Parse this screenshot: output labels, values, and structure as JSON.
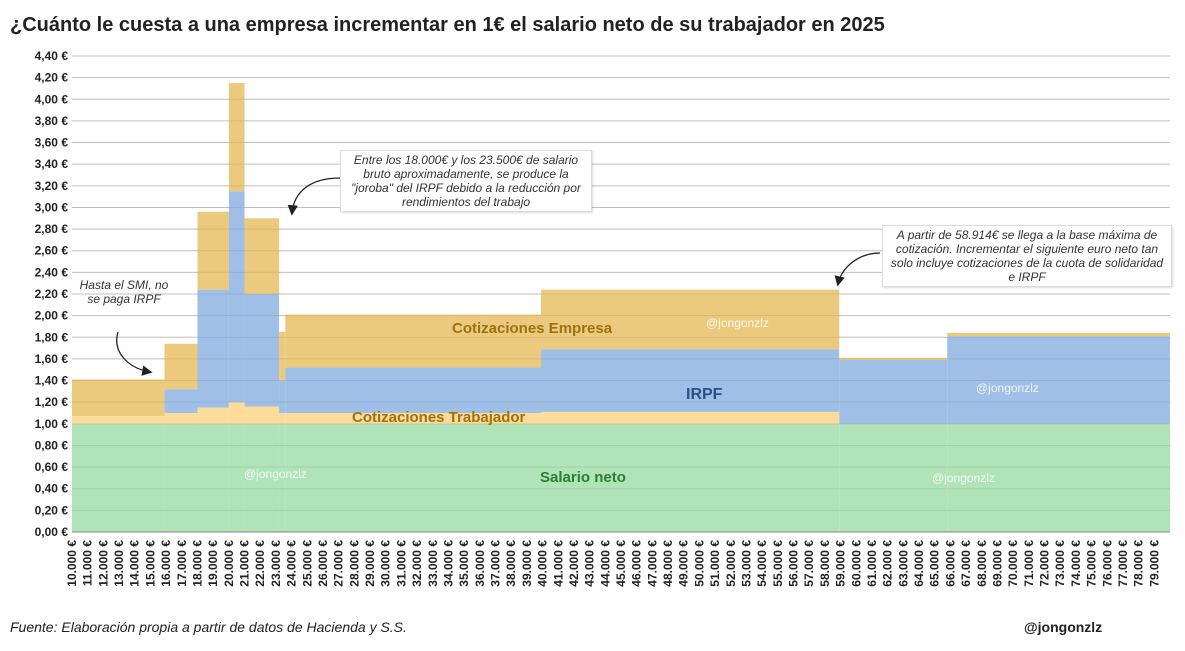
{
  "chart_data": {
    "type": "area",
    "title": "¿Cuánto le cuesta a una empresa incrementar en 1€ el salario neto de su trabajador en 2025",
    "xlabel": "",
    "ylabel": "",
    "ylim": [
      0,
      4.4
    ],
    "yticks": [
      "0,00 €",
      "0,20 €",
      "0,40 €",
      "0,60 €",
      "0,80 €",
      "1,00 €",
      "1,20 €",
      "1,40 €",
      "1,60 €",
      "1,80 €",
      "2,00 €",
      "2,20 €",
      "2,40 €",
      "2,60 €",
      "2,80 €",
      "3,00 €",
      "3,20 €",
      "3,40 €",
      "3,60 €",
      "3,80 €",
      "4,00 €",
      "4,20 €",
      "4,40 €"
    ],
    "x_tick_labels": [
      "10.000 €",
      "11.000 €",
      "12.000 €",
      "13.000 €",
      "14.000 €",
      "15.000 €",
      "16.000 €",
      "17.000 €",
      "18.000 €",
      "19.000 €",
      "20.000 €",
      "21.000 €",
      "22.000 €",
      "23.000 €",
      "24.000 €",
      "25.000 €",
      "26.000 €",
      "27.000 €",
      "28.000 €",
      "29.000 €",
      "30.000 €",
      "31.000 €",
      "32.000 €",
      "33.000 €",
      "34.000 €",
      "35.000 €",
      "36.000 €",
      "37.000 €",
      "38.000 €",
      "39.000 €",
      "40.000 €",
      "41.000 €",
      "42.000 €",
      "43.000 €",
      "44.000 €",
      "45.000 €",
      "46.000 €",
      "47.000 €",
      "48.000 €",
      "49.000 €",
      "50.000 €",
      "51.000 €",
      "52.000 €",
      "53.000 €",
      "54.000 €",
      "55.000 €",
      "56.000 €",
      "57.000 €",
      "58.000 €",
      "59.000 €",
      "60.000 €",
      "61.000 €",
      "62.000 €",
      "63.000 €",
      "64.000 €",
      "65.000 €",
      "66.000 €",
      "67.000 €",
      "68.000 €",
      "69.000 €",
      "70.000 €",
      "71.000 €",
      "72.000 €",
      "73.000 €",
      "74.000 €",
      "75.000 €",
      "76.000 €",
      "77.000 €",
      "78.000 €",
      "79.000 €"
    ],
    "xlim": [
      10000,
      80000
    ],
    "grid": true,
    "series_labels": {
      "net": "Salario neto",
      "worker_ss": "Cotizaciones Trabajador",
      "irpf": "IRPF",
      "company_ss": "Cotizaciones Empresa"
    },
    "colors": {
      "net": "#b0e3b8",
      "worker_ss": "#fbdc9b",
      "irpf": "#9fbfe6",
      "company_ss": "#ebc97d",
      "grid": "#d0d0d0",
      "net_label": "#2e7d32",
      "worker_label": "#a07010",
      "irpf_label": "#2a4f8a",
      "company_label": "#a07010"
    },
    "steps": [
      {
        "x0": 10000,
        "x1": 15900,
        "net": 1.0,
        "worker_ss": 0.07,
        "irpf": 0.0,
        "company_ss": 0.34
      },
      {
        "x0": 15900,
        "x1": 18000,
        "net": 1.0,
        "worker_ss": 0.1,
        "irpf": 0.22,
        "company_ss": 0.42
      },
      {
        "x0": 18000,
        "x1": 20000,
        "net": 1.0,
        "worker_ss": 0.15,
        "irpf": 1.09,
        "company_ss": 0.72
      },
      {
        "x0": 20000,
        "x1": 21000,
        "net": 1.0,
        "worker_ss": 0.2,
        "irpf": 1.95,
        "company_ss": 1.0
      },
      {
        "x0": 21000,
        "x1": 23200,
        "net": 1.0,
        "worker_ss": 0.16,
        "irpf": 1.04,
        "company_ss": 0.7
      },
      {
        "x0": 23200,
        "x1": 23600,
        "net": 1.0,
        "worker_ss": 0.1,
        "irpf": 0.3,
        "company_ss": 0.45
      },
      {
        "x0": 23600,
        "x1": 39900,
        "net": 1.0,
        "worker_ss": 0.1,
        "irpf": 0.42,
        "company_ss": 0.49
      },
      {
        "x0": 39900,
        "x1": 58914,
        "net": 1.0,
        "worker_ss": 0.11,
        "irpf": 0.58,
        "company_ss": 0.55
      },
      {
        "x0": 58914,
        "x1": 65800,
        "net": 1.0,
        "worker_ss": 0.0,
        "irpf": 0.59,
        "company_ss": 0.02
      },
      {
        "x0": 65800,
        "x1": 80000,
        "net": 1.0,
        "worker_ss": 0.0,
        "irpf": 0.81,
        "company_ss": 0.03
      }
    ],
    "annotations": {
      "smi": "Hasta el SMI, no se paga IRPF",
      "joroba": "Entre los 18.000€ y los 23.500€ de salario bruto aproximadamente, se produce la \"joroba\" del IRPF debido a la reducción por rendimientos del trabajo",
      "base_max": "A partir de 58.914€ se llega a la base máxima de cotización.  Incrementar el siguiente euro neto tan solo incluye cotizaciones de la cuota de solidaridad e IRPF"
    },
    "watermark": "@jongonzlz"
  },
  "footer": {
    "source": "Fuente: Elaboración propia a partir de datos de Hacienda y S.S.",
    "handle": "@jongonzlz"
  }
}
